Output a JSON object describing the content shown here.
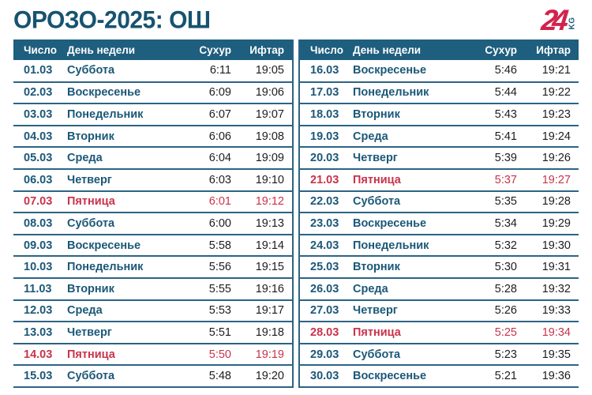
{
  "title": "ОРОЗО-2025: ОШ",
  "logo": {
    "number": "24",
    "suffix": "KG"
  },
  "colors": {
    "header_bg": "#1e5e7e",
    "title_text": "#17536f",
    "row_text": "#1b5878",
    "friday_red": "#c8334a",
    "logo_red": "#d2234c"
  },
  "table": {
    "headers": {
      "date": "Число",
      "day": "День недели",
      "suhur": "Сухур",
      "iftar": "Ифтар"
    },
    "left_rows": [
      {
        "date": "01.03",
        "day": "Суббота",
        "suhur": "6:11",
        "iftar": "19:05",
        "highlight": false
      },
      {
        "date": "02.03",
        "day": "Воскресенье",
        "suhur": "6:09",
        "iftar": "19:06",
        "highlight": false
      },
      {
        "date": "03.03",
        "day": "Понедельник",
        "suhur": "6:07",
        "iftar": "19:07",
        "highlight": false
      },
      {
        "date": "04.03",
        "day": "Вторник",
        "suhur": "6:06",
        "iftar": "19:08",
        "highlight": false
      },
      {
        "date": "05.03",
        "day": "Среда",
        "suhur": "6:04",
        "iftar": "19:09",
        "highlight": false
      },
      {
        "date": "06.03",
        "day": "Четверг",
        "suhur": "6:03",
        "iftar": "19:10",
        "highlight": false
      },
      {
        "date": "07.03",
        "day": "Пятница",
        "suhur": "6:01",
        "iftar": "19:12",
        "highlight": true
      },
      {
        "date": "08.03",
        "day": "Суббота",
        "suhur": "6:00",
        "iftar": "19:13",
        "highlight": false
      },
      {
        "date": "09.03",
        "day": "Воскресенье",
        "suhur": "5:58",
        "iftar": "19:14",
        "highlight": false
      },
      {
        "date": "10.03",
        "day": "Понедельник",
        "suhur": "5:56",
        "iftar": "19:15",
        "highlight": false
      },
      {
        "date": "11.03",
        "day": "Вторник",
        "suhur": "5:55",
        "iftar": "19:16",
        "highlight": false
      },
      {
        "date": "12.03",
        "day": "Среда",
        "suhur": "5:53",
        "iftar": "19:17",
        "highlight": false
      },
      {
        "date": "13.03",
        "day": "Четверг",
        "suhur": "5:51",
        "iftar": "19:18",
        "highlight": false
      },
      {
        "date": "14.03",
        "day": "Пятница",
        "suhur": "5:50",
        "iftar": "19:19",
        "highlight": true
      },
      {
        "date": "15.03",
        "day": "Суббота",
        "suhur": "5:48",
        "iftar": "19:20",
        "highlight": false
      }
    ],
    "right_rows": [
      {
        "date": "16.03",
        "day": "Воскресенье",
        "suhur": "5:46",
        "iftar": "19:21",
        "highlight": false
      },
      {
        "date": "17.03",
        "day": "Понедельник",
        "suhur": "5:44",
        "iftar": "19:22",
        "highlight": false
      },
      {
        "date": "18.03",
        "day": "Вторник",
        "suhur": "5:43",
        "iftar": "19:23",
        "highlight": false
      },
      {
        "date": "19.03",
        "day": "Среда",
        "suhur": "5:41",
        "iftar": "19:24",
        "highlight": false
      },
      {
        "date": "20.03",
        "day": "Четверг",
        "suhur": "5:39",
        "iftar": "19:26",
        "highlight": false
      },
      {
        "date": "21.03",
        "day": "Пятница",
        "suhur": "5:37",
        "iftar": "19:27",
        "highlight": true
      },
      {
        "date": "22.03",
        "day": "Суббота",
        "suhur": "5:35",
        "iftar": "19:28",
        "highlight": false
      },
      {
        "date": "23.03",
        "day": "Воскресенье",
        "suhur": "5:34",
        "iftar": "19:29",
        "highlight": false
      },
      {
        "date": "24.03",
        "day": "Понедельник",
        "suhur": "5:32",
        "iftar": "19:30",
        "highlight": false
      },
      {
        "date": "25.03",
        "day": "Вторник",
        "suhur": "5:30",
        "iftar": "19:31",
        "highlight": false
      },
      {
        "date": "26.03",
        "day": "Среда",
        "suhur": "5:28",
        "iftar": "19:32",
        "highlight": false
      },
      {
        "date": "27.03",
        "day": "Четверг",
        "suhur": "5:26",
        "iftar": "19:33",
        "highlight": false
      },
      {
        "date": "28.03",
        "day": "Пятница",
        "suhur": "5:25",
        "iftar": "19:34",
        "highlight": true
      },
      {
        "date": "29.03",
        "day": "Суббота",
        "suhur": "5:23",
        "iftar": "19:35",
        "highlight": false
      },
      {
        "date": "30.03",
        "day": "Воскресенье",
        "suhur": "5:21",
        "iftar": "19:36",
        "highlight": false
      }
    ]
  }
}
